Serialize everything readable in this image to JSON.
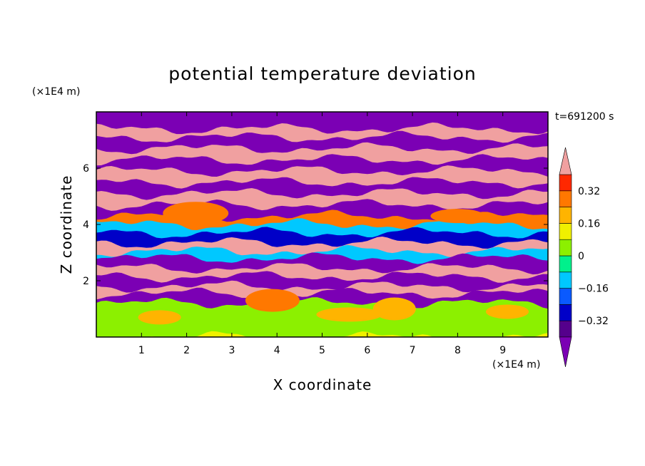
{
  "chart_data": {
    "type": "heatmap",
    "title": "potential temperature deviation",
    "xlabel": "X coordinate",
    "ylabel": "Z coordinate",
    "x_unit": "(×1E4 m)",
    "y_unit": "(×1E4 m)",
    "time_label": "t=691200 s",
    "xlim": [
      0,
      10
    ],
    "ylim": [
      0,
      8
    ],
    "x_ticks": [
      1,
      2,
      3,
      4,
      5,
      6,
      7,
      8,
      9
    ],
    "y_ticks": [
      2,
      4,
      6
    ],
    "colorbar": {
      "levels": [
        -0.4,
        -0.32,
        -0.24,
        -0.16,
        -0.08,
        0,
        0.08,
        0.16,
        0.24,
        0.32,
        0.4
      ],
      "labels": [
        "0.32",
        "0.16",
        "0",
        "−0.16",
        "−0.32"
      ],
      "label_values": [
        0.32,
        0.16,
        0,
        -0.16,
        -0.32
      ],
      "colors": [
        "#7b00b4",
        "#55008c",
        "#0000c8",
        "#0a5aff",
        "#00c8ff",
        "#00f08c",
        "#8cf000",
        "#f0f000",
        "#ffb400",
        "#ff7800",
        "#ff2800",
        "#f0a0a0"
      ],
      "extend": "both"
    },
    "bands": [
      {
        "z": 7.9,
        "value": -0.5
      },
      {
        "z": 7.4,
        "value": 0.5
      },
      {
        "z": 7.1,
        "value": -0.5
      },
      {
        "z": 6.7,
        "value": 0.5
      },
      {
        "z": 6.3,
        "value": -0.5
      },
      {
        "z": 5.9,
        "value": 0.5
      },
      {
        "z": 5.5,
        "value": -0.5
      },
      {
        "z": 5.1,
        "value": 0.5
      },
      {
        "z": 4.7,
        "value": -0.5
      },
      {
        "z": 4.3,
        "value": 0.3
      },
      {
        "z": 4.0,
        "value": -0.1
      },
      {
        "z": 3.7,
        "value": -0.3
      },
      {
        "z": 3.35,
        "value": 0.5
      },
      {
        "z": 3.05,
        "value": -0.1
      },
      {
        "z": 2.8,
        "value": -0.45
      },
      {
        "z": 2.45,
        "value": 0.5
      },
      {
        "z": 2.15,
        "value": -0.5
      },
      {
        "z": 1.8,
        "value": 0.5
      },
      {
        "z": 1.55,
        "value": -0.45
      },
      {
        "z": 1.2,
        "value": 0.02
      },
      {
        "z": 0.8,
        "value": 0.06
      },
      {
        "z": 0.4,
        "value": 0.02
      },
      {
        "z": 0.0,
        "value": 0.1
      }
    ],
    "patches": [
      {
        "x": 1.4,
        "z": 0.7,
        "value": 0.2
      },
      {
        "x": 3.9,
        "z": 1.3,
        "value": 0.3
      },
      {
        "x": 5.6,
        "z": 0.8,
        "value": 0.2
      },
      {
        "x": 6.6,
        "z": 1.0,
        "value": 0.2
      },
      {
        "x": 8.0,
        "z": 4.3,
        "value": 0.3
      },
      {
        "x": 2.2,
        "z": 4.4,
        "value": 0.3
      },
      {
        "x": 9.1,
        "z": 0.9,
        "value": 0.2
      }
    ]
  }
}
